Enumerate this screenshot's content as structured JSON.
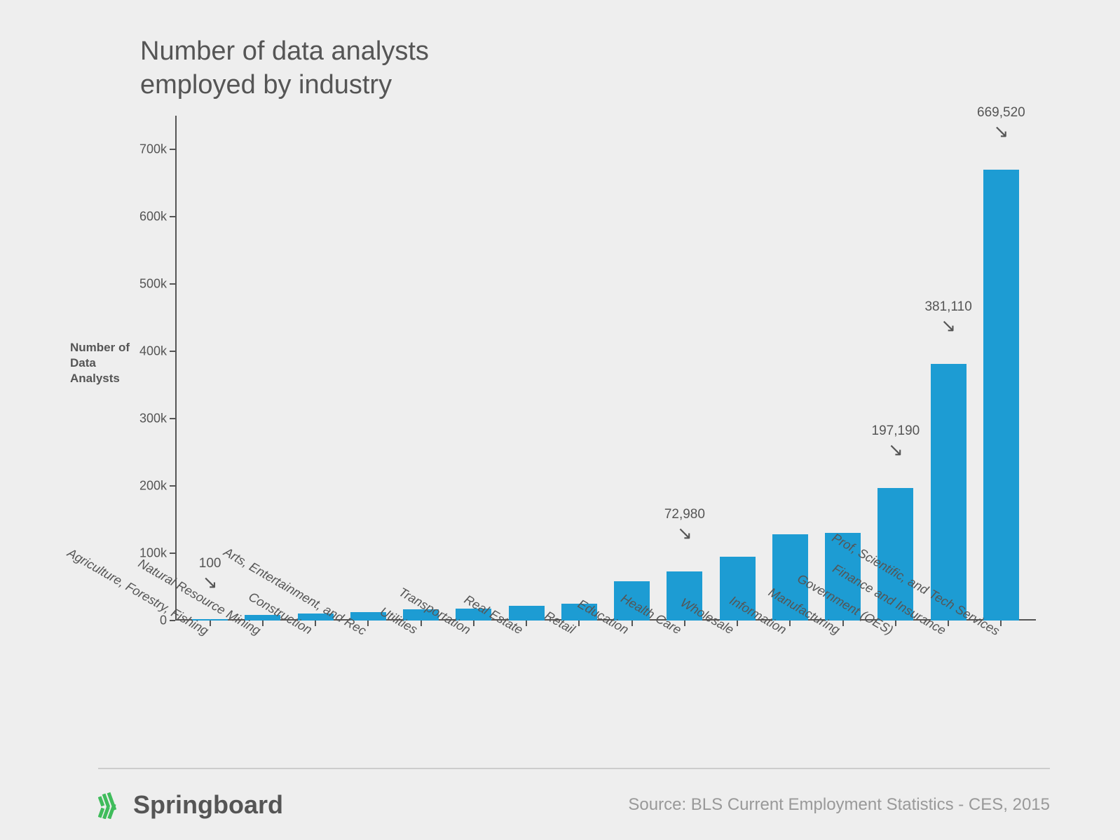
{
  "title_line1": "Number of data analysts",
  "title_line2": "employed by industry",
  "y_axis_label": "Number of  Data Analysts",
  "chart": {
    "type": "bar",
    "bar_color": "#1d9cd3",
    "background_color": "#eeeeee",
    "axis_color": "#555555",
    "label_color": "#555555",
    "ylim_max": 750000,
    "y_ticks": [
      0,
      100000,
      200000,
      300000,
      400000,
      500000,
      600000,
      700000
    ],
    "y_tick_labels": [
      "0",
      "100k",
      "200k",
      "300k",
      "400k",
      "500k",
      "600k",
      "700k"
    ],
    "bar_width_ratio": 0.68,
    "title_fontsize": 38,
    "tick_fontsize": 18,
    "categories": [
      "Agriculture, Forestry, Fishing",
      "Natural Resource Mining",
      "Construction",
      "Arts, Entertainment, and Rec",
      "Utilities",
      "Transportation",
      "Real Estate",
      "Retail",
      "Education",
      "Health Care",
      "Wholesale",
      "Information",
      "Manufacturing",
      "Government (OES)",
      "Finance and Insurance",
      "Prof, Scientific, and Tech Services"
    ],
    "values": [
      100,
      8000,
      10000,
      12000,
      17000,
      18000,
      22000,
      25000,
      58000,
      72980,
      95000,
      128000,
      130000,
      197190,
      381110,
      669520
    ],
    "callouts": [
      {
        "index": 0,
        "label": "100",
        "value": 100
      },
      {
        "index": 9,
        "label": "72,980",
        "value": 72980
      },
      {
        "index": 13,
        "label": "197,190",
        "value": 197190
      },
      {
        "index": 14,
        "label": "381,110",
        "value": 381110
      },
      {
        "index": 15,
        "label": "669,520",
        "value": 669520
      }
    ]
  },
  "logo_text": "Springboard",
  "logo_color": "#3fbc5b",
  "source_text": "Source: BLS Current Employment Statistics - CES, 2015"
}
